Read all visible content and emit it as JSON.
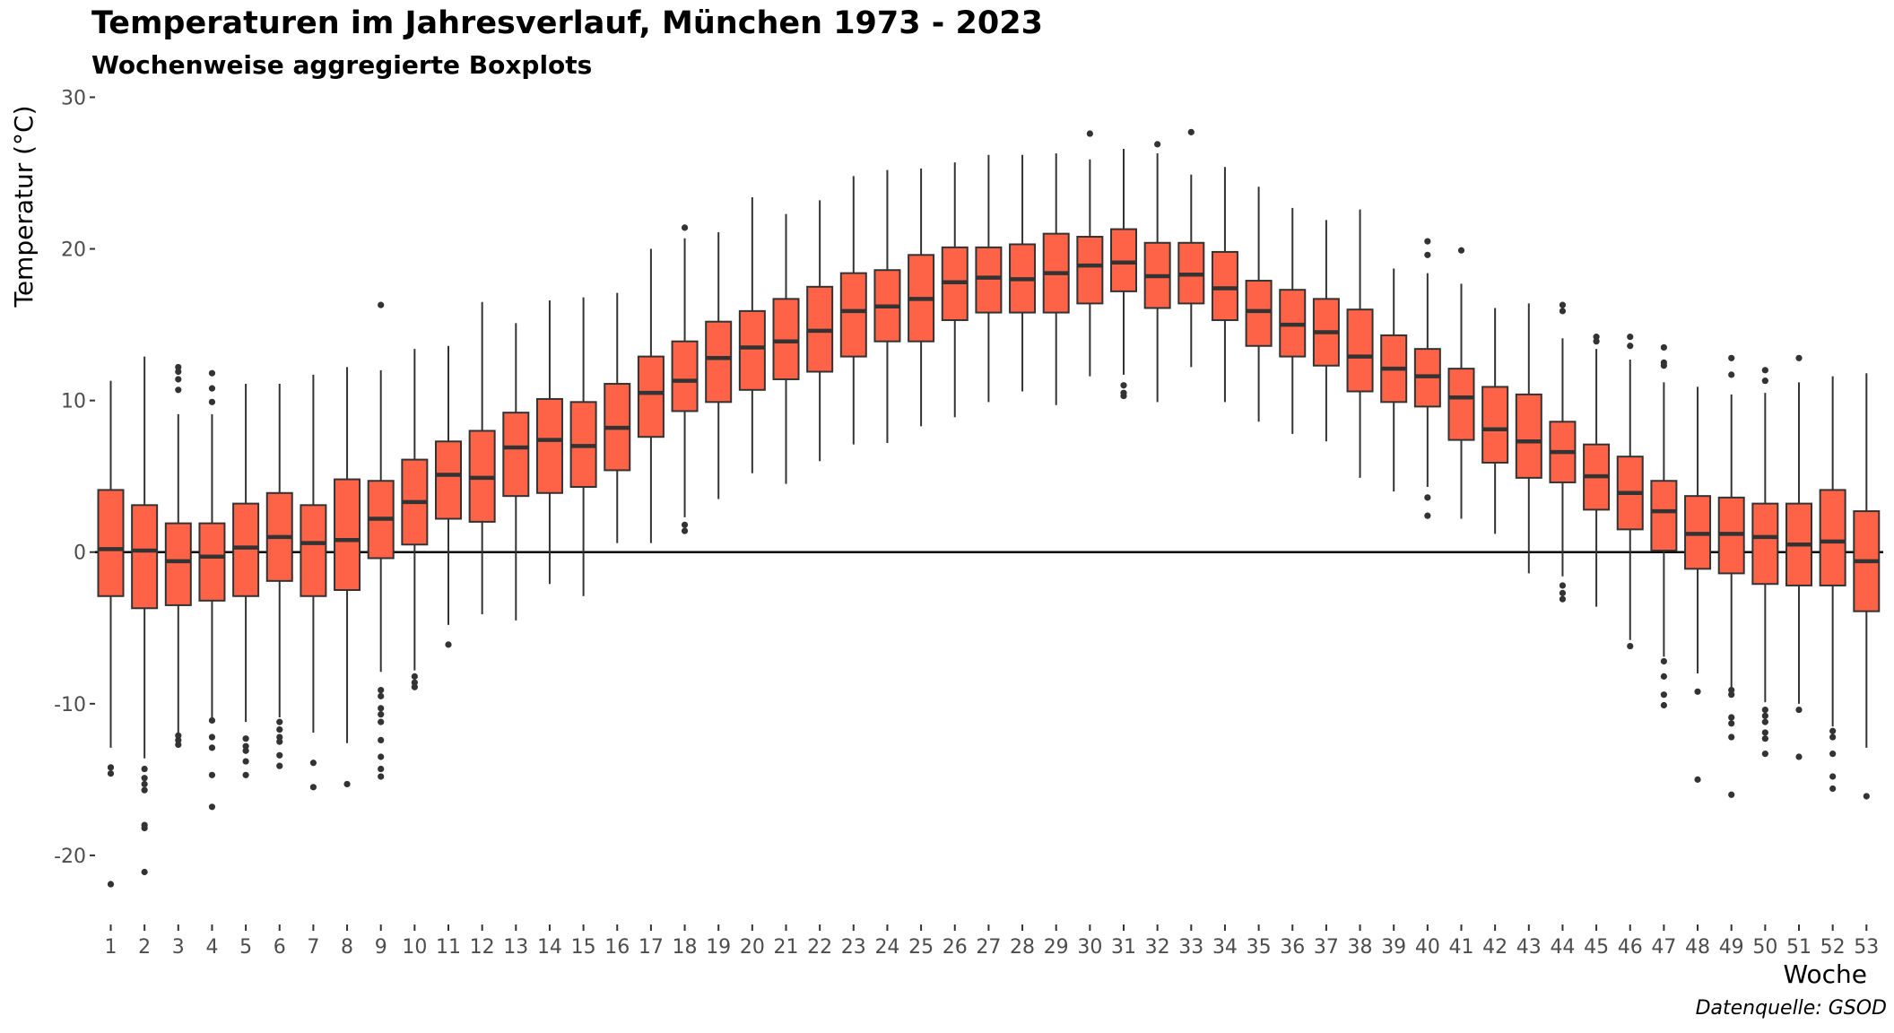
{
  "chart_data": {
    "type": "boxplot",
    "title": "Temperaturen im Jahresverlauf, München 1973 - 2023",
    "subtitle": "Wochenweise aggregierte Boxplots",
    "xlabel": "Woche",
    "ylabel": "Temperatur (°C)",
    "caption": "Datenquelle: GSOD",
    "ylim": [
      -24.5,
      30.5
    ],
    "y_ticks": [
      -20,
      -10,
      0,
      10,
      20,
      30
    ],
    "reference_line": 0,
    "box_fill": "#ff6347",
    "line_color": "#333333",
    "grid": false,
    "weeks": [
      {
        "week": "1",
        "low": -12.9,
        "q1": -2.9,
        "median": 0.2,
        "q3": 4.1,
        "high": 11.3,
        "outliers": [
          -14.2,
          -14.6,
          -21.9
        ]
      },
      {
        "week": "2",
        "low": -13.6,
        "q1": -3.7,
        "median": 0.1,
        "q3": 3.1,
        "high": 12.9,
        "outliers": [
          -14.3,
          -14.9,
          -15.3,
          -15.7,
          -18.0,
          -18.2,
          -21.1
        ]
      },
      {
        "week": "3",
        "low": -11.9,
        "q1": -3.5,
        "median": -0.6,
        "q3": 1.9,
        "high": 9.1,
        "outliers": [
          10.7,
          11.4,
          11.9,
          12.2,
          -12.1,
          -12.4,
          -12.7
        ]
      },
      {
        "week": "4",
        "low": -10.9,
        "q1": -3.2,
        "median": -0.3,
        "q3": 1.9,
        "high": 9.1,
        "outliers": [
          9.9,
          10.8,
          11.8,
          -11.1,
          -12.2,
          -12.9,
          -14.7,
          -16.8
        ]
      },
      {
        "week": "5",
        "low": -11.2,
        "q1": -2.9,
        "median": 0.3,
        "q3": 3.2,
        "high": 11.1,
        "outliers": [
          -12.3,
          -12.8,
          -13.1,
          -13.8,
          -14.7
        ]
      },
      {
        "week": "6",
        "low": -10.9,
        "q1": -1.9,
        "median": 1.0,
        "q3": 3.9,
        "high": 11.1,
        "outliers": [
          -11.2,
          -11.7,
          -12.2,
          -12.5,
          -13.4,
          -14.1
        ]
      },
      {
        "week": "7",
        "low": -11.9,
        "q1": -2.9,
        "median": 0.6,
        "q3": 3.1,
        "high": 11.7,
        "outliers": [
          -13.9,
          -15.5
        ]
      },
      {
        "week": "8",
        "low": -12.6,
        "q1": -2.5,
        "median": 0.8,
        "q3": 4.8,
        "high": 12.2,
        "outliers": [
          -15.3
        ]
      },
      {
        "week": "9",
        "low": -7.9,
        "q1": -0.4,
        "median": 2.2,
        "q3": 4.7,
        "high": 12.0,
        "outliers": [
          16.3,
          -9.1,
          -9.5,
          -10.3,
          -10.7,
          -11.2,
          -12.4,
          -13.5,
          -14.3,
          -14.8
        ]
      },
      {
        "week": "10",
        "low": -7.8,
        "q1": 0.5,
        "median": 3.3,
        "q3": 6.1,
        "high": 13.4,
        "outliers": [
          -8.2,
          -8.6,
          -8.9
        ]
      },
      {
        "week": "11",
        "low": -4.8,
        "q1": 2.2,
        "median": 5.1,
        "q3": 7.3,
        "high": 13.6,
        "outliers": [
          -6.1
        ]
      },
      {
        "week": "12",
        "low": -4.1,
        "q1": 2.0,
        "median": 4.9,
        "q3": 8.0,
        "high": 16.5,
        "outliers": []
      },
      {
        "week": "13",
        "low": -4.5,
        "q1": 3.7,
        "median": 6.9,
        "q3": 9.2,
        "high": 15.1,
        "outliers": []
      },
      {
        "week": "14",
        "low": -2.1,
        "q1": 3.9,
        "median": 7.4,
        "q3": 10.1,
        "high": 16.6,
        "outliers": []
      },
      {
        "week": "15",
        "low": -2.9,
        "q1": 4.3,
        "median": 7.0,
        "q3": 9.9,
        "high": 16.8,
        "outliers": []
      },
      {
        "week": "16",
        "low": 0.6,
        "q1": 5.4,
        "median": 8.2,
        "q3": 11.1,
        "high": 17.1,
        "outliers": []
      },
      {
        "week": "17",
        "low": 0.6,
        "q1": 7.6,
        "median": 10.5,
        "q3": 12.9,
        "high": 20.0,
        "outliers": []
      },
      {
        "week": "18",
        "low": 2.3,
        "q1": 9.3,
        "median": 11.3,
        "q3": 13.9,
        "high": 20.7,
        "outliers": [
          21.4,
          1.8,
          1.4
        ]
      },
      {
        "week": "19",
        "low": 3.5,
        "q1": 9.9,
        "median": 12.8,
        "q3": 15.2,
        "high": 21.1,
        "outliers": []
      },
      {
        "week": "20",
        "low": 5.2,
        "q1": 10.7,
        "median": 13.5,
        "q3": 15.9,
        "high": 23.4,
        "outliers": []
      },
      {
        "week": "21",
        "low": 4.5,
        "q1": 11.4,
        "median": 13.9,
        "q3": 16.7,
        "high": 22.3,
        "outliers": []
      },
      {
        "week": "22",
        "low": 6.0,
        "q1": 11.9,
        "median": 14.6,
        "q3": 17.5,
        "high": 23.2,
        "outliers": []
      },
      {
        "week": "23",
        "low": 7.1,
        "q1": 12.9,
        "median": 15.9,
        "q3": 18.4,
        "high": 24.8,
        "outliers": []
      },
      {
        "week": "24",
        "low": 7.2,
        "q1": 13.9,
        "median": 16.2,
        "q3": 18.6,
        "high": 25.2,
        "outliers": []
      },
      {
        "week": "25",
        "low": 8.3,
        "q1": 13.9,
        "median": 16.7,
        "q3": 19.6,
        "high": 25.3,
        "outliers": []
      },
      {
        "week": "26",
        "low": 8.9,
        "q1": 15.3,
        "median": 17.8,
        "q3": 20.1,
        "high": 25.7,
        "outliers": []
      },
      {
        "week": "27",
        "low": 9.9,
        "q1": 15.8,
        "median": 18.1,
        "q3": 20.1,
        "high": 26.2,
        "outliers": []
      },
      {
        "week": "28",
        "low": 10.6,
        "q1": 15.8,
        "median": 18.0,
        "q3": 20.3,
        "high": 26.2,
        "outliers": []
      },
      {
        "week": "29",
        "low": 9.7,
        "q1": 15.8,
        "median": 18.4,
        "q3": 21.0,
        "high": 26.3,
        "outliers": []
      },
      {
        "week": "30",
        "low": 11.6,
        "q1": 16.4,
        "median": 18.9,
        "q3": 20.8,
        "high": 25.9,
        "outliers": [
          27.6
        ]
      },
      {
        "week": "31",
        "low": 11.7,
        "q1": 17.2,
        "median": 19.1,
        "q3": 21.3,
        "high": 26.6,
        "outliers": [
          11.0,
          10.5,
          10.3
        ]
      },
      {
        "week": "32",
        "low": 9.9,
        "q1": 16.1,
        "median": 18.2,
        "q3": 20.4,
        "high": 26.3,
        "outliers": [
          26.9
        ]
      },
      {
        "week": "33",
        "low": 12.2,
        "q1": 16.4,
        "median": 18.3,
        "q3": 20.4,
        "high": 24.9,
        "outliers": [
          27.7
        ]
      },
      {
        "week": "34",
        "low": 9.9,
        "q1": 15.3,
        "median": 17.4,
        "q3": 19.8,
        "high": 25.4,
        "outliers": []
      },
      {
        "week": "35",
        "low": 8.6,
        "q1": 13.6,
        "median": 15.9,
        "q3": 17.9,
        "high": 24.1,
        "outliers": []
      },
      {
        "week": "36",
        "low": 7.8,
        "q1": 12.9,
        "median": 15.0,
        "q3": 17.3,
        "high": 22.7,
        "outliers": []
      },
      {
        "week": "37",
        "low": 7.3,
        "q1": 12.3,
        "median": 14.5,
        "q3": 16.7,
        "high": 21.9,
        "outliers": []
      },
      {
        "week": "38",
        "low": 4.9,
        "q1": 10.6,
        "median": 12.9,
        "q3": 16.0,
        "high": 22.6,
        "outliers": []
      },
      {
        "week": "39",
        "low": 4.0,
        "q1": 9.9,
        "median": 12.1,
        "q3": 14.3,
        "high": 18.7,
        "outliers": []
      },
      {
        "week": "40",
        "low": 4.3,
        "q1": 9.6,
        "median": 11.6,
        "q3": 13.4,
        "high": 18.4,
        "outliers": [
          20.5,
          19.6,
          3.6,
          2.4
        ]
      },
      {
        "week": "41",
        "low": 2.2,
        "q1": 7.4,
        "median": 10.2,
        "q3": 12.1,
        "high": 17.7,
        "outliers": [
          19.9
        ]
      },
      {
        "week": "42",
        "low": 1.2,
        "q1": 5.9,
        "median": 8.1,
        "q3": 10.9,
        "high": 16.1,
        "outliers": []
      },
      {
        "week": "43",
        "low": -1.4,
        "q1": 4.9,
        "median": 7.3,
        "q3": 10.4,
        "high": 16.4,
        "outliers": []
      },
      {
        "week": "44",
        "low": -1.6,
        "q1": 4.6,
        "median": 6.6,
        "q3": 8.6,
        "high": 14.1,
        "outliers": [
          16.3,
          15.9,
          -2.2,
          -2.7,
          -3.1
        ]
      },
      {
        "week": "45",
        "low": -3.6,
        "q1": 2.8,
        "median": 5.0,
        "q3": 7.1,
        "high": 13.4,
        "outliers": [
          14.2,
          13.9
        ]
      },
      {
        "week": "46",
        "low": -5.8,
        "q1": 1.5,
        "median": 3.9,
        "q3": 6.3,
        "high": 12.7,
        "outliers": [
          14.2,
          13.6,
          -6.2
        ]
      },
      {
        "week": "47",
        "low": -6.9,
        "q1": 0.1,
        "median": 2.7,
        "q3": 4.7,
        "high": 11.2,
        "outliers": [
          13.5,
          12.5,
          12.3,
          -7.2,
          -8.2,
          -9.4,
          -10.1
        ]
      },
      {
        "week": "48",
        "low": -8.0,
        "q1": -1.1,
        "median": 1.2,
        "q3": 3.7,
        "high": 10.9,
        "outliers": [
          -9.2,
          -15.0
        ]
      },
      {
        "week": "49",
        "low": -8.9,
        "q1": -1.4,
        "median": 1.2,
        "q3": 3.6,
        "high": 10.4,
        "outliers": [
          12.8,
          11.7,
          -9.1,
          -9.4,
          -10.9,
          -11.3,
          -12.2,
          -16.0
        ]
      },
      {
        "week": "50",
        "low": -9.9,
        "q1": -2.1,
        "median": 1.0,
        "q3": 3.2,
        "high": 10.5,
        "outliers": [
          12.0,
          11.3,
          -10.4,
          -10.8,
          -11.2,
          -11.9,
          -12.3,
          -13.3
        ]
      },
      {
        "week": "51",
        "low": -10.0,
        "q1": -2.2,
        "median": 0.5,
        "q3": 3.2,
        "high": 11.2,
        "outliers": [
          12.8,
          -10.4,
          -13.5
        ]
      },
      {
        "week": "52",
        "low": -11.5,
        "q1": -2.2,
        "median": 0.7,
        "q3": 4.1,
        "high": 11.6,
        "outliers": [
          -11.8,
          -12.2,
          -13.3,
          -14.8,
          -15.6
        ]
      },
      {
        "week": "53",
        "low": -12.9,
        "q1": -3.9,
        "median": -0.6,
        "q3": 2.7,
        "high": 11.8,
        "outliers": [
          -16.1
        ]
      }
    ]
  }
}
